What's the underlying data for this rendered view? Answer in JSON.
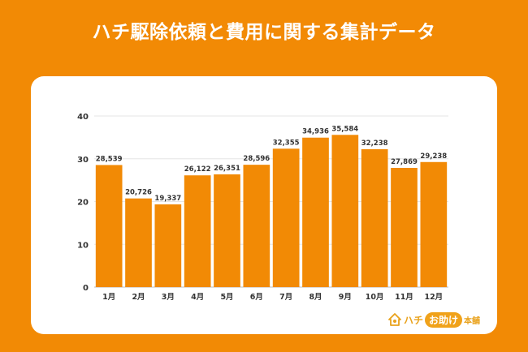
{
  "title": "ハチ駆除依頼と費用に関する集計データ",
  "logo": {
    "name_a": "ハチ",
    "name_badge": "お助け",
    "name_b": "本舗"
  },
  "colors": {
    "background": "#F28A05",
    "bar": "#F28A05",
    "card": "#FFFFFF"
  },
  "chart_data": {
    "type": "bar",
    "categories": [
      "1月",
      "2月",
      "3月",
      "4月",
      "5月",
      "6月",
      "7月",
      "8月",
      "9月",
      "10月",
      "11月",
      "12月"
    ],
    "values": [
      28539,
      20726,
      19337,
      26122,
      26351,
      28596,
      32355,
      34936,
      35584,
      32238,
      27869,
      29238
    ],
    "value_labels": [
      "28,539",
      "20,726",
      "19,337",
      "26,122",
      "26,351",
      "28,596",
      "32,355",
      "34,936",
      "35,584",
      "32,238",
      "27,869",
      "29,238"
    ],
    "yticks": [
      "0",
      "10",
      "20",
      "30",
      "40"
    ],
    "ylim": [
      0,
      40000
    ],
    "grid": true
  }
}
